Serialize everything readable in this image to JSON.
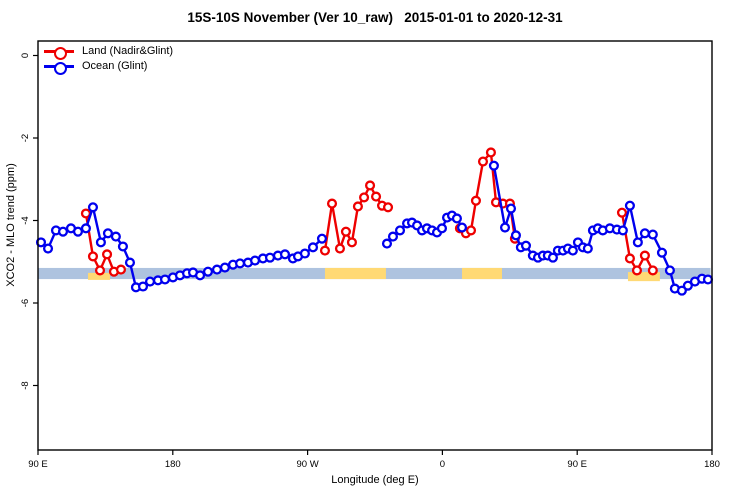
{
  "figure": {
    "background": "#ffffff"
  },
  "chart_data": {
    "type": "line",
    "title": "15S-10S November (Ver 10_raw)   2015-01-01 to 2020-12-31",
    "xlabel": "Longitude (deg E)",
    "ylabel": "XCO2 - MLO trend (ppm)",
    "grid": false,
    "legend_position": "top-left-inside",
    "x_axis": {
      "note": "longitude axis starts at 90E and wraps eastward through the dateline; positions are degrees from map start (90..540)",
      "start": 90,
      "end": 540,
      "ticks": [
        {
          "pos": 90,
          "label": "90 E"
        },
        {
          "pos": 180,
          "label": "180"
        },
        {
          "pos": 270,
          "label": "90 W"
        },
        {
          "pos": 360,
          "label": "0"
        },
        {
          "pos": 450,
          "label": "90 E"
        },
        {
          "pos": 540,
          "label": "180"
        }
      ]
    },
    "y_axis": {
      "min": -9.6,
      "max": 0.35,
      "ticks": [
        {
          "pos": 0,
          "label": "0"
        },
        {
          "pos": -2,
          "label": "-2"
        },
        {
          "pos": -4,
          "label": "-4"
        },
        {
          "pos": -6,
          "label": "-6"
        },
        {
          "pos": -8,
          "label": "-8"
        }
      ]
    },
    "reference_band": {
      "color": "#aec3df",
      "from": 90,
      "to": 539,
      "y_top": -5.15,
      "y_bottom": -5.42,
      "highlight_color": "#ffd974",
      "highlights": [
        {
          "from": 123.4,
          "to": 138.1,
          "y_top": -5.27,
          "y_bottom": -5.44
        },
        {
          "from": 281.6,
          "to": 322.3,
          "y_top": -5.15,
          "y_bottom": -5.42
        },
        {
          "from": 373.1,
          "to": 399.8,
          "y_top": -5.15,
          "y_bottom": -5.42
        },
        {
          "from": 483.9,
          "to": 505.2,
          "y_top": -5.25,
          "y_bottom": -5.47
        }
      ]
    },
    "series": [
      {
        "id": "land",
        "name": "Land (Nadir&Glint)",
        "color": "#ee0000",
        "marker": "open-circle",
        "segments": [
          [
            [
              122.0,
              -3.83
            ],
            [
              126.7,
              -4.87
            ],
            [
              131.4,
              -5.21
            ],
            [
              136.1,
              -4.82
            ],
            [
              140.7,
              -5.24
            ],
            [
              145.4,
              -5.19
            ]
          ],
          [
            [
              281.6,
              -4.73
            ],
            [
              286.3,
              -3.59
            ],
            [
              291.6,
              -4.68
            ],
            [
              295.6,
              -4.27
            ],
            [
              299.6,
              -4.53
            ],
            [
              303.6,
              -3.66
            ],
            [
              307.7,
              -3.44
            ],
            [
              311.7,
              -3.15
            ],
            [
              315.7,
              -3.42
            ],
            [
              319.7,
              -3.64
            ],
            [
              323.7,
              -3.68
            ]
          ],
          [
            [
              371.7,
              -4.19
            ],
            [
              375.7,
              -4.31
            ],
            [
              379.1,
              -4.24
            ],
            [
              382.4,
              -3.52
            ],
            [
              387.1,
              -2.57
            ],
            [
              392.4,
              -2.35
            ],
            [
              395.8,
              -3.56
            ],
            [
              400.4,
              -3.59
            ],
            [
              405.1,
              -3.59
            ],
            [
              408.4,
              -4.44
            ]
          ],
          [
            [
              479.9,
              -3.81
            ],
            [
              485.2,
              -4.92
            ],
            [
              489.9,
              -5.21
            ],
            [
              495.2,
              -4.85
            ],
            [
              500.5,
              -5.21
            ]
          ]
        ]
      },
      {
        "id": "ocean",
        "name": "Ocean (Glint)",
        "color": "#0000ee",
        "marker": "open-circle",
        "segments": [
          [
            [
              92.0,
              -4.53
            ],
            [
              96.7,
              -4.68
            ],
            [
              102.0,
              -4.24
            ],
            [
              106.7,
              -4.27
            ],
            [
              112.0,
              -4.19
            ],
            [
              116.7,
              -4.27
            ],
            [
              122.0,
              -4.19
            ],
            [
              126.7,
              -3.68
            ],
            [
              132.0,
              -4.53
            ],
            [
              136.7,
              -4.31
            ],
            [
              142.0,
              -4.39
            ],
            [
              146.7,
              -4.63
            ],
            [
              151.4,
              -5.02
            ],
            [
              155.4,
              -5.62
            ],
            [
              160.1,
              -5.6
            ],
            [
              164.8,
              -5.48
            ],
            [
              170.1,
              -5.45
            ],
            [
              174.8,
              -5.43
            ],
            [
              180.1,
              -5.38
            ],
            [
              184.8,
              -5.33
            ],
            [
              189.5,
              -5.28
            ],
            [
              193.5,
              -5.26
            ],
            [
              198.2,
              -5.33
            ],
            [
              203.5,
              -5.24
            ],
            [
              209.5,
              -5.19
            ],
            [
              214.8,
              -5.14
            ],
            [
              220.2,
              -5.07
            ],
            [
              224.9,
              -5.04
            ],
            [
              230.2,
              -5.02
            ],
            [
              234.9,
              -4.97
            ],
            [
              240.2,
              -4.92
            ],
            [
              244.9,
              -4.9
            ],
            [
              250.2,
              -4.85
            ],
            [
              254.9,
              -4.82
            ],
            [
              260.2,
              -4.92
            ],
            [
              263.6,
              -4.87
            ],
            [
              268.2,
              -4.8
            ],
            [
              273.6,
              -4.65
            ],
            [
              279.6,
              -4.44
            ]
          ],
          [
            [
              323.0,
              -4.56
            ],
            [
              327.0,
              -4.39
            ],
            [
              331.7,
              -4.24
            ],
            [
              336.4,
              -4.07
            ],
            [
              339.7,
              -4.05
            ],
            [
              343.1,
              -4.12
            ],
            [
              346.4,
              -4.24
            ],
            [
              349.7,
              -4.19
            ],
            [
              353.1,
              -4.24
            ],
            [
              356.4,
              -4.29
            ],
            [
              359.7,
              -4.19
            ],
            [
              363.1,
              -3.93
            ],
            [
              366.4,
              -3.88
            ],
            [
              369.7,
              -3.95
            ],
            [
              373.1,
              -4.17
            ]
          ],
          [
            [
              394.4,
              -2.67
            ],
            [
              401.8,
              -4.17
            ],
            [
              405.8,
              -3.71
            ],
            [
              409.1,
              -4.36
            ],
            [
              412.4,
              -4.65
            ],
            [
              415.8,
              -4.61
            ],
            [
              420.4,
              -4.85
            ],
            [
              423.8,
              -4.9
            ],
            [
              427.1,
              -4.85
            ],
            [
              430.4,
              -4.85
            ],
            [
              433.8,
              -4.9
            ],
            [
              437.1,
              -4.73
            ],
            [
              440.5,
              -4.73
            ],
            [
              443.8,
              -4.68
            ],
            [
              447.1,
              -4.73
            ],
            [
              450.5,
              -4.53
            ],
            [
              453.8,
              -4.65
            ],
            [
              457.1,
              -4.68
            ],
            [
              460.5,
              -4.24
            ],
            [
              463.8,
              -4.19
            ],
            [
              467.1,
              -4.24
            ],
            [
              471.8,
              -4.19
            ],
            [
              476.5,
              -4.22
            ],
            [
              480.5,
              -4.24
            ],
            [
              485.2,
              -3.64
            ],
            [
              490.5,
              -4.53
            ],
            [
              495.2,
              -4.31
            ],
            [
              500.5,
              -4.34
            ],
            [
              506.6,
              -4.78
            ],
            [
              511.9,
              -5.21
            ],
            [
              515.2,
              -5.65
            ],
            [
              519.9,
              -5.7
            ],
            [
              523.9,
              -5.58
            ],
            [
              528.6,
              -5.48
            ],
            [
              533.3,
              -5.41
            ],
            [
              537.3,
              -5.43
            ]
          ]
        ]
      }
    ]
  }
}
